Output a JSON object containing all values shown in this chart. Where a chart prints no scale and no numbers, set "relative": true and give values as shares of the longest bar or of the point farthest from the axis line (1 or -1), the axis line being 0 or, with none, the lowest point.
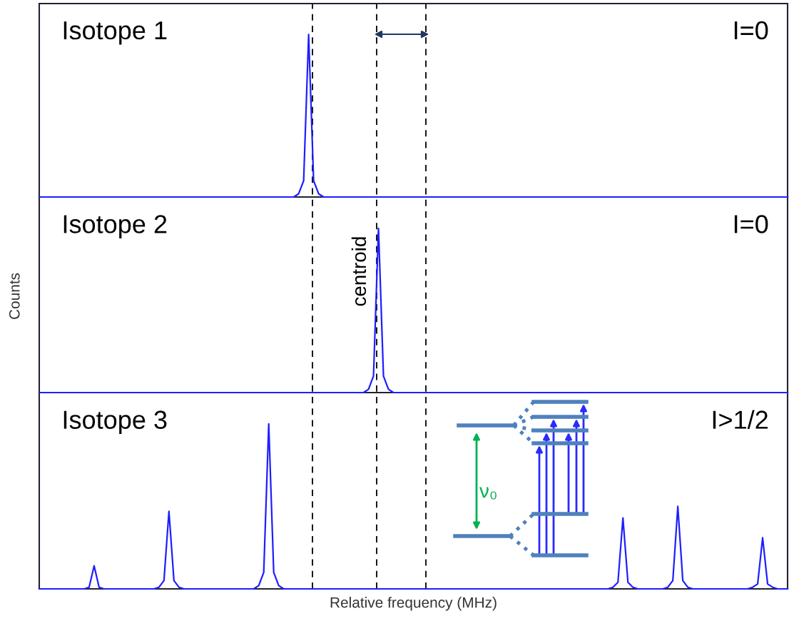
{
  "chart_data": [
    {
      "type": "line",
      "relative": true,
      "tick_labels": false,
      "line_style": "solid",
      "annotations": [
        "Isotope 1",
        "I=0"
      ],
      "categories": [
        null,
        null,
        null,
        null,
        null,
        null,
        null,
        null,
        null,
        null,
        null,
        null,
        null,
        null,
        null,
        null,
        null,
        null,
        null,
        null,
        null,
        null,
        null,
        null,
        null,
        null,
        null,
        null,
        null,
        null,
        null,
        null,
        null,
        null,
        null,
        null,
        null,
        null,
        null,
        null,
        null,
        null,
        null,
        null,
        null,
        null,
        null,
        null,
        null,
        null,
        null,
        null,
        null,
        null,
        null,
        null,
        null,
        null,
        null,
        null,
        null,
        null,
        null,
        null,
        null,
        null,
        null,
        null,
        null,
        null,
        null,
        null,
        null,
        null,
        null,
        null,
        null,
        null,
        null,
        null,
        null,
        null,
        null,
        null,
        null,
        null,
        null,
        null,
        null,
        null,
        null,
        null,
        null,
        null,
        null,
        null,
        null,
        null,
        null,
        null,
        null,
        null,
        null,
        null,
        null,
        null,
        null,
        null,
        null,
        null,
        null,
        null,
        null,
        null,
        null,
        null,
        null,
        null,
        null,
        null,
        null,
        null,
        null,
        null,
        null,
        null,
        null,
        null,
        null,
        null,
        null,
        null,
        null,
        null,
        null,
        null,
        null,
        null,
        null,
        null,
        null,
        null,
        null,
        null,
        null,
        null,
        null,
        null,
        null,
        null,
        null
      ],
      "series": [
        {
          "color": "#1f1fff",
          "values": [
            0,
            0,
            0,
            0,
            0,
            0,
            0,
            0,
            0,
            0,
            0,
            0,
            0,
            0,
            0,
            0,
            0,
            0,
            0,
            0,
            0,
            0,
            0,
            0,
            0,
            0,
            0,
            0,
            0,
            0,
            0,
            0,
            0,
            0,
            0,
            0,
            0,
            0,
            0,
            0,
            0,
            0,
            0,
            0,
            0,
            0,
            0,
            0,
            0,
            0,
            0,
            0,
            0.02,
            0.1,
            1,
            0.1,
            0.02,
            0,
            0,
            0,
            0,
            0,
            0,
            0,
            0,
            0,
            0,
            0,
            0,
            0,
            0,
            0,
            0,
            0,
            0,
            0,
            0,
            0,
            0,
            0,
            0,
            0,
            0,
            0,
            0,
            0,
            0,
            0,
            0,
            0,
            0,
            0,
            0,
            0,
            0,
            0,
            0,
            0,
            0,
            0,
            0,
            0,
            0,
            0,
            0,
            0,
            0,
            0,
            0,
            0,
            0,
            0,
            0,
            0,
            0,
            0,
            0,
            0,
            0,
            0,
            0,
            0,
            0,
            0,
            0,
            0,
            0,
            0,
            0,
            0,
            0,
            0,
            0,
            0,
            0,
            0,
            0,
            0,
            0,
            0,
            0,
            0,
            0,
            0,
            0,
            0,
            0,
            0,
            0,
            0,
            0
          ]
        }
      ]
    },
    {
      "type": "line",
      "relative": true,
      "tick_labels": false,
      "line_style": "solid",
      "ylabel": "Counts",
      "annotations": [
        "Isotope 2",
        "I=0",
        "centroid"
      ],
      "categories": [
        null,
        null,
        null,
        null,
        null,
        null,
        null,
        null,
        null,
        null,
        null,
        null,
        null,
        null,
        null,
        null,
        null,
        null,
        null,
        null,
        null,
        null,
        null,
        null,
        null,
        null,
        null,
        null,
        null,
        null,
        null,
        null,
        null,
        null,
        null,
        null,
        null,
        null,
        null,
        null,
        null,
        null,
        null,
        null,
        null,
        null,
        null,
        null,
        null,
        null,
        null,
        null,
        null,
        null,
        null,
        null,
        null,
        null,
        null,
        null,
        null,
        null,
        null,
        null,
        null,
        null,
        null,
        null,
        null,
        null,
        null,
        null,
        null,
        null,
        null,
        null,
        null,
        null,
        null,
        null,
        null,
        null,
        null,
        null,
        null,
        null,
        null,
        null,
        null,
        null,
        null,
        null,
        null,
        null,
        null,
        null,
        null,
        null,
        null,
        null,
        null,
        null,
        null,
        null,
        null,
        null,
        null,
        null,
        null,
        null,
        null,
        null,
        null,
        null,
        null,
        null,
        null,
        null,
        null,
        null,
        null,
        null,
        null,
        null,
        null,
        null,
        null,
        null,
        null,
        null,
        null,
        null,
        null,
        null,
        null,
        null,
        null,
        null,
        null,
        null,
        null,
        null,
        null,
        null,
        null,
        null,
        null,
        null,
        null,
        null,
        null
      ],
      "series": [
        {
          "color": "#1f1fff",
          "values": [
            0,
            0,
            0,
            0,
            0,
            0,
            0,
            0,
            0,
            0,
            0,
            0,
            0,
            0,
            0,
            0,
            0,
            0,
            0,
            0,
            0,
            0,
            0,
            0,
            0,
            0,
            0,
            0,
            0,
            0,
            0,
            0,
            0,
            0,
            0,
            0,
            0,
            0,
            0,
            0,
            0,
            0,
            0,
            0,
            0,
            0,
            0,
            0,
            0,
            0,
            0,
            0,
            0,
            0,
            0,
            0,
            0,
            0,
            0,
            0,
            0,
            0,
            0,
            0,
            0,
            0,
            0.02,
            0.1,
            1,
            0.1,
            0.02,
            0,
            0,
            0,
            0,
            0,
            0,
            0,
            0,
            0,
            0,
            0,
            0,
            0,
            0,
            0,
            0,
            0,
            0,
            0,
            0,
            0,
            0,
            0,
            0,
            0,
            0,
            0,
            0,
            0,
            0,
            0,
            0,
            0,
            0,
            0,
            0,
            0,
            0,
            0,
            0,
            0,
            0,
            0,
            0,
            0,
            0,
            0,
            0,
            0,
            0,
            0,
            0,
            0,
            0,
            0,
            0,
            0,
            0,
            0,
            0,
            0,
            0,
            0,
            0,
            0,
            0,
            0,
            0,
            0,
            0,
            0,
            0,
            0,
            0,
            0,
            0,
            0,
            0,
            0,
            0
          ]
        }
      ]
    },
    {
      "type": "line",
      "relative": true,
      "tick_labels": false,
      "line_style": "solid",
      "xlabel": "Relative frequency (MHz)",
      "annotations": [
        "Isotope 3",
        "I>1/2",
        "ν₀"
      ],
      "categories": [
        null,
        null,
        null,
        null,
        null,
        null,
        null,
        null,
        null,
        null,
        null,
        null,
        null,
        null,
        null,
        null,
        null,
        null,
        null,
        null,
        null,
        null,
        null,
        null,
        null,
        null,
        null,
        null,
        null,
        null,
        null,
        null,
        null,
        null,
        null,
        null,
        null,
        null,
        null,
        null,
        null,
        null,
        null,
        null,
        null,
        null,
        null,
        null,
        null,
        null,
        null,
        null,
        null,
        null,
        null,
        null,
        null,
        null,
        null,
        null,
        null,
        null,
        null,
        null,
        null,
        null,
        null,
        null,
        null,
        null,
        null,
        null,
        null,
        null,
        null,
        null,
        null,
        null,
        null,
        null,
        null,
        null,
        null,
        null,
        null,
        null,
        null,
        null,
        null,
        null,
        null,
        null,
        null,
        null,
        null,
        null,
        null,
        null,
        null,
        null,
        null,
        null,
        null,
        null,
        null,
        null,
        null,
        null,
        null,
        null,
        null,
        null,
        null,
        null,
        null,
        null,
        null,
        null,
        null,
        null,
        null,
        null,
        null,
        null,
        null,
        null,
        null,
        null,
        null,
        null,
        null,
        null,
        null,
        null,
        null,
        null,
        null,
        null,
        null,
        null,
        null,
        null,
        null,
        null,
        null,
        null,
        null,
        null,
        null,
        null,
        null
      ],
      "series": [
        {
          "color": "#1f1fff",
          "values": [
            0,
            0,
            0,
            0,
            0,
            0,
            0,
            0,
            0,
            0,
            0.01,
            0.14,
            0.01,
            0,
            0,
            0,
            0,
            0,
            0,
            0,
            0,
            0,
            0,
            0,
            0.01,
            0.05,
            0.47,
            0.05,
            0.01,
            0,
            0,
            0,
            0,
            0,
            0,
            0,
            0,
            0,
            0,
            0,
            0,
            0,
            0,
            0,
            0.02,
            0.1,
            1,
            0.1,
            0.02,
            0,
            0,
            0,
            0,
            0,
            0,
            0,
            0,
            0,
            0,
            0,
            0,
            0,
            0,
            0,
            0,
            0,
            0,
            0,
            0,
            0,
            0,
            0,
            0,
            0,
            0,
            0,
            0,
            0,
            0,
            0,
            0,
            0,
            0,
            0,
            0,
            0,
            0,
            0,
            0,
            0,
            0,
            0,
            0,
            0,
            0,
            0,
            0,
            0,
            0,
            0,
            0,
            0,
            0,
            0,
            0,
            0,
            0,
            0,
            0,
            0,
            0,
            0,
            0,
            0,
            0,
            0.01,
            0.04,
            0.43,
            0.04,
            0.01,
            0,
            0,
            0,
            0,
            0,
            0,
            0.01,
            0.05,
            0.5,
            0.05,
            0.01,
            0,
            0,
            0,
            0,
            0,
            0,
            0,
            0,
            0,
            0,
            0,
            0,
            0.01,
            0.03,
            0.31,
            0.03,
            0.01,
            0,
            0,
            0
          ]
        }
      ]
    }
  ]
}
